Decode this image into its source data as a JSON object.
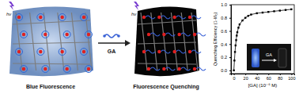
{
  "diagram": {
    "left": {
      "label": "Blue Fluorescence",
      "light": "hν"
    },
    "right": {
      "label": "Fluorescence Quenching",
      "light": "hν"
    },
    "arrow_label": "GA"
  },
  "chart_data": {
    "type": "line",
    "x_label": "[GA] (10⁻⁶ M)",
    "y_label": "Quenching Efficiency (1-I/I₀)",
    "x": [
      0,
      1,
      2,
      3,
      4,
      5,
      6,
      8,
      10,
      15,
      20,
      25,
      30,
      40,
      50,
      60,
      70,
      80,
      90,
      100
    ],
    "values": [
      0,
      0.15,
      0.28,
      0.38,
      0.46,
      0.53,
      0.58,
      0.65,
      0.7,
      0.76,
      0.8,
      0.83,
      0.85,
      0.87,
      0.88,
      0.89,
      0.9,
      0.91,
      0.92,
      0.93
    ],
    "color": "#000000",
    "marker": "square",
    "xlim": [
      -5,
      105
    ],
    "ylim": [
      -0.05,
      1.0
    ],
    "xticks": [
      0,
      20,
      40,
      60,
      80,
      100
    ],
    "yticks": [
      {
        "value": 0,
        "label": "0.0"
      },
      {
        "value": 0.2,
        "label": "0.2"
      },
      {
        "value": 0.4,
        "label": "0.4"
      },
      {
        "value": 0.6,
        "label": "0.6"
      },
      {
        "value": 0.8,
        "label": "0.8"
      },
      {
        "value": 1.0,
        "label": "1.0"
      }
    ],
    "inset_label": "GA"
  }
}
